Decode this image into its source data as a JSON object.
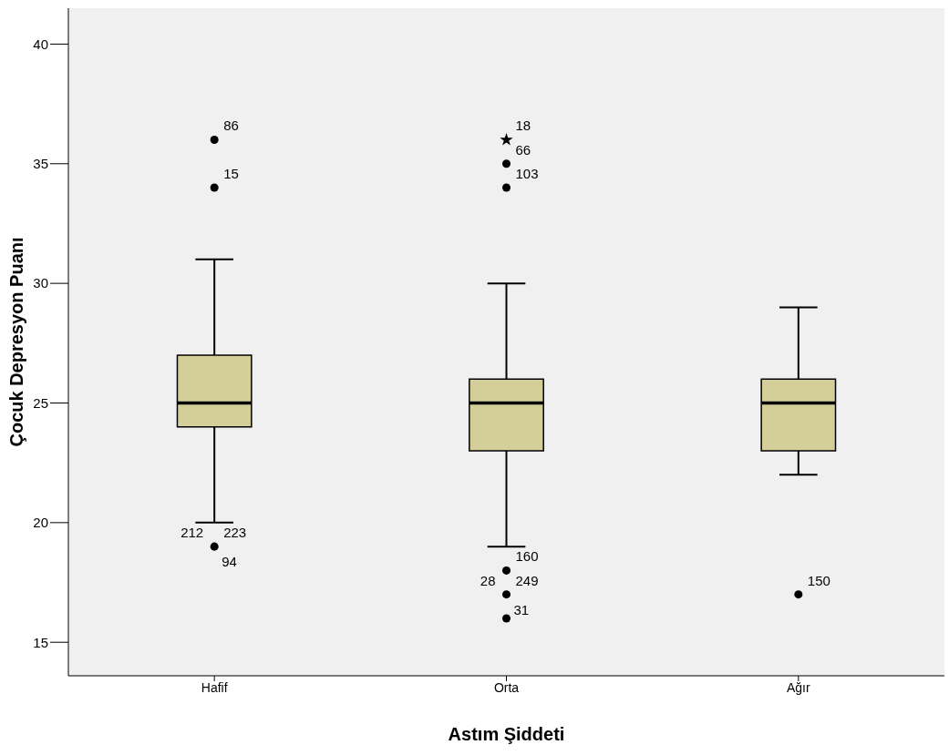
{
  "chart_data": {
    "type": "box",
    "xlabel": "Astım Şiddeti",
    "ylabel": "Çocuk Depresyon Puanı",
    "categories": [
      "Hafif",
      "Orta",
      "Ağır"
    ],
    "ylim": [
      13.6,
      41.5
    ],
    "yticks": [
      15,
      20,
      25,
      30,
      35,
      40
    ],
    "series": [
      {
        "color": "#d4cf98",
        "boxes": [
          {
            "low": 20,
            "q1": 24,
            "median": 25,
            "q3": 27,
            "high": 31
          },
          {
            "low": 19,
            "q1": 23,
            "median": 25,
            "q3": 26,
            "high": 30
          },
          {
            "low": 22,
            "q1": 23,
            "median": 25,
            "q3": 26,
            "high": 29
          }
        ]
      },
      {
        "type": "scatter",
        "x": [
          "Hafif",
          "Hafif",
          "Hafif",
          "Orta",
          "Orta",
          "Orta",
          "Orta",
          "Orta",
          "Ağır"
        ],
        "values": [
          36,
          34,
          19,
          35,
          34,
          18,
          17,
          16,
          17
        ],
        "marker": "circle",
        "color": "#000000"
      },
      {
        "type": "scatter",
        "x": [
          "Orta"
        ],
        "values": [
          36
        ],
        "marker": "star",
        "color": "#000000"
      }
    ],
    "annotations": [
      {
        "text": "86",
        "x": "Hafif",
        "y": 36
      },
      {
        "text": "15",
        "x": "Hafif",
        "y": 34
      },
      {
        "text": "223",
        "x": "Hafif",
        "y": 19
      },
      {
        "text": "212",
        "x": "Hafif",
        "y": 19
      },
      {
        "text": "94",
        "x": "Hafif",
        "y": 19
      },
      {
        "text": "18",
        "x": "Orta",
        "y": 36
      },
      {
        "text": "66",
        "x": "Orta",
        "y": 35
      },
      {
        "text": "103",
        "x": "Orta",
        "y": 34
      },
      {
        "text": "160",
        "x": "Orta",
        "y": 18
      },
      {
        "text": "249",
        "x": "Orta",
        "y": 17
      },
      {
        "text": "28",
        "x": "Orta",
        "y": 17
      },
      {
        "text": "31",
        "x": "Orta",
        "y": 17
      },
      {
        "text": "150",
        "x": "Ağır",
        "y": 17
      }
    ]
  }
}
